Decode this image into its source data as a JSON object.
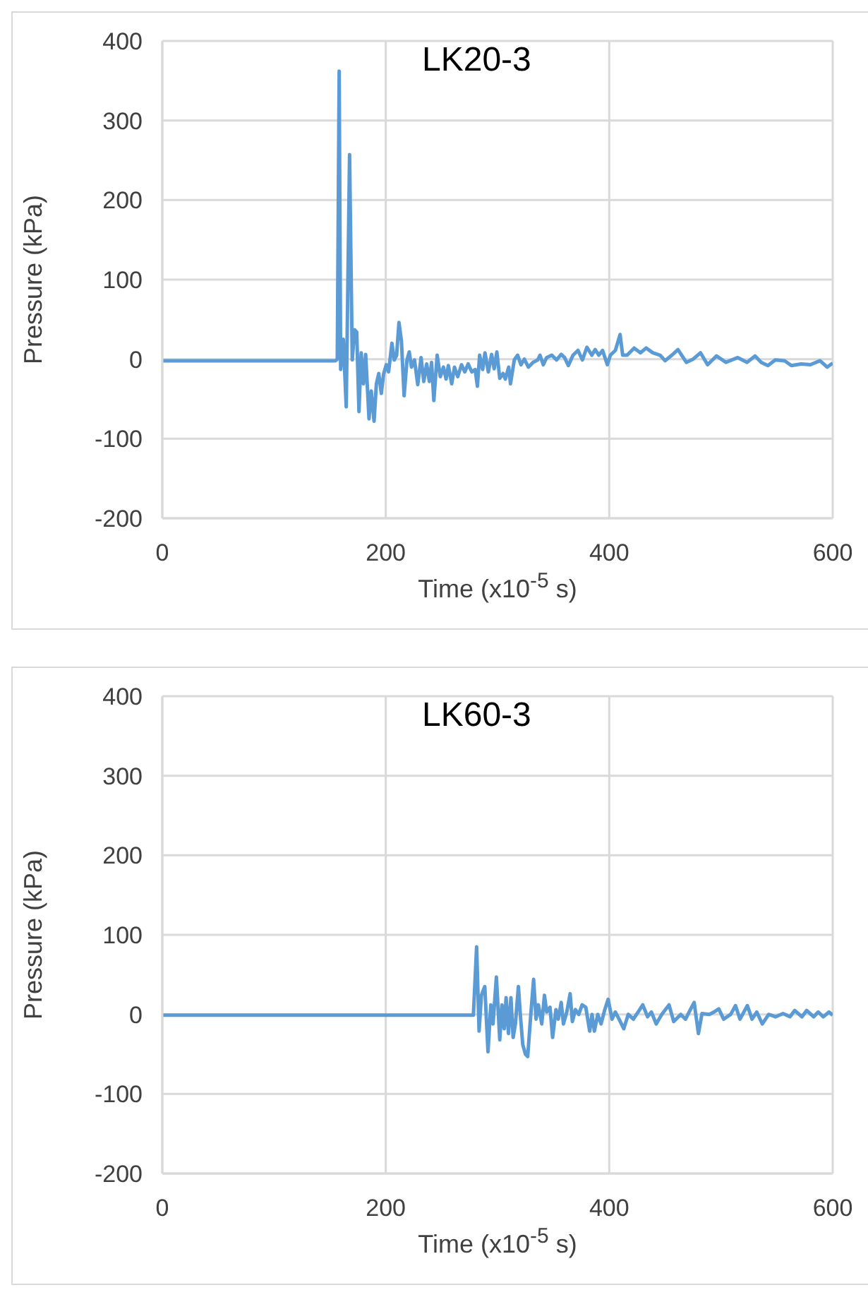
{
  "chart_data": [
    {
      "type": "line",
      "title": "LK20-3",
      "xlabel": "Time (x10$^{-5}$ s)",
      "ylabel": "Pressure (kPa)",
      "xlim": [
        0,
        600
      ],
      "xticks": [
        0,
        200,
        400,
        600
      ],
      "ylim": [
        -200,
        400
      ],
      "yticks": [
        -200,
        -100,
        0,
        100,
        200,
        300,
        400
      ],
      "grid": true,
      "marker": "none",
      "x": [
        0,
        155,
        156.6,
        158.3,
        159.6,
        162,
        164.6,
        167.6,
        170,
        172,
        174,
        176,
        178,
        180,
        182,
        183.6,
        185,
        187,
        189.5,
        191.6,
        193.7,
        196,
        198,
        200.4,
        202.5,
        205.5,
        207.6,
        209.7,
        211.8,
        214,
        216.4,
        219,
        221,
        223,
        225.7,
        228.6,
        231.6,
        234,
        236.6,
        239,
        241,
        243,
        246,
        248.8,
        251.6,
        254,
        256,
        259,
        261.5,
        264.4,
        267.8,
        270.7,
        273.7,
        277,
        280,
        282,
        284,
        286.7,
        288.8,
        291.8,
        294.7,
        297,
        299.4,
        302,
        305,
        307,
        310,
        311.6,
        315,
        318,
        321,
        324,
        327.6,
        331.8,
        336,
        338,
        341,
        344,
        348.6,
        352.8,
        357,
        360,
        363.4,
        367.6,
        372,
        376,
        380,
        384.4,
        387.4,
        390.7,
        394,
        398.3,
        401,
        405.5,
        409.7,
        412,
        416,
        422.3,
        428,
        433,
        439,
        445.5,
        450,
        456,
        461.5,
        469,
        475,
        481.7,
        488,
        496,
        504.4,
        515,
        523.4,
        530.5,
        536,
        542,
        548.6,
        557,
        563,
        571.8,
        580,
        588.6,
        595,
        600
      ],
      "series": [
        {
          "color": "#5b9bd5",
          "values": [
            -2,
            -2,
            0,
            362,
            -13,
            25,
            -60,
            257,
            -1,
            37,
            34,
            -66,
            8,
            -31,
            6,
            -37,
            -75,
            -40,
            -78,
            -31,
            -18,
            -43,
            -19,
            -7,
            -16,
            20,
            -1,
            5,
            46,
            23,
            -46,
            -1,
            9,
            -10,
            -1,
            -32,
            2,
            -28,
            -6,
            -28,
            -4,
            -52,
            5,
            -22,
            -10,
            -25,
            -8,
            -31,
            -10,
            -22,
            -7,
            -16,
            -6,
            -16,
            -13,
            -34,
            5,
            -13,
            8,
            -16,
            6,
            -12,
            9,
            -24,
            -18,
            -25,
            -10,
            -31,
            -1,
            5,
            -7,
            0,
            -10,
            -4,
            -1,
            5,
            -7,
            2,
            5,
            -1,
            6,
            2,
            -8,
            5,
            11,
            -1,
            15,
            5,
            12,
            5,
            11,
            -7,
            5,
            11,
            31,
            5,
            5,
            14,
            8,
            14,
            8,
            5,
            -2,
            5,
            12,
            -4,
            0,
            8,
            -7,
            4,
            -4,
            2,
            -4,
            4,
            -4,
            -8,
            -1,
            -2,
            -8,
            -6,
            -7,
            -2,
            -10,
            -5
          ]
        }
      ]
    },
    {
      "type": "line",
      "title": "LK60-3",
      "xlabel": "Time (x10$^{-5}$ s)",
      "ylabel": "Pressure (kPa)",
      "xlim": [
        0,
        600
      ],
      "xticks": [
        0,
        200,
        400,
        600
      ],
      "ylim": [
        -200,
        400
      ],
      "yticks": [
        -200,
        -100,
        0,
        100,
        200,
        300,
        400
      ],
      "grid": true,
      "marker": "none",
      "x": [
        0,
        278.4,
        281.3,
        283.5,
        285.6,
        288.6,
        291.5,
        294,
        296,
        299,
        302,
        304,
        306,
        307.7,
        309.8,
        312,
        314,
        316,
        318.7,
        320.4,
        322.6,
        325,
        327,
        329.8,
        332.3,
        334.5,
        336.6,
        339.6,
        342,
        344,
        347,
        349.3,
        352.3,
        354.4,
        357,
        359,
        362,
        365,
        367,
        369.7,
        372.7,
        375.7,
        379,
        382.5,
        384.6,
        386.7,
        389.7,
        392.7,
        396,
        399,
        402.5,
        405.4,
        408.8,
        413,
        417,
        421.6,
        425.8,
        430,
        434.3,
        437.7,
        442,
        447,
        453.5,
        457.7,
        464,
        468.3,
        472.6,
        476,
        479.8,
        483,
        489.6,
        493.8,
        498,
        502.4,
        508.7,
        513,
        517,
        523.6,
        527.8,
        532,
        537,
        542.7,
        549,
        555.5,
        561.8,
        566,
        572.5,
        576.7,
        583,
        587,
        591.6,
        596.7,
        600
      ],
      "series": [
        {
          "color": "#5b9bd5",
          "values": [
            -1,
            -1,
            85,
            -21,
            24,
            35,
            -47,
            12,
            -12,
            47,
            -32,
            12,
            -18,
            21,
            -24,
            21,
            -29,
            -12,
            35,
            0,
            -38,
            -50,
            -53,
            0,
            44,
            -6,
            12,
            -12,
            24,
            3,
            9,
            -29,
            6,
            -6,
            15,
            -12,
            3,
            26,
            -9,
            6,
            0,
            12,
            9,
            -21,
            0,
            -21,
            0,
            -12,
            6,
            19,
            -6,
            3,
            -6,
            -18,
            0,
            -6,
            3,
            12,
            -3,
            3,
            -12,
            0,
            12,
            -9,
            0,
            -6,
            6,
            15,
            -24,
            1,
            0,
            3,
            7,
            -6,
            0,
            11,
            -6,
            11,
            -6,
            3,
            -12,
            0,
            -3,
            1,
            -3,
            5,
            -3,
            5,
            -3,
            3,
            -3,
            3,
            -1
          ]
        }
      ]
    }
  ]
}
